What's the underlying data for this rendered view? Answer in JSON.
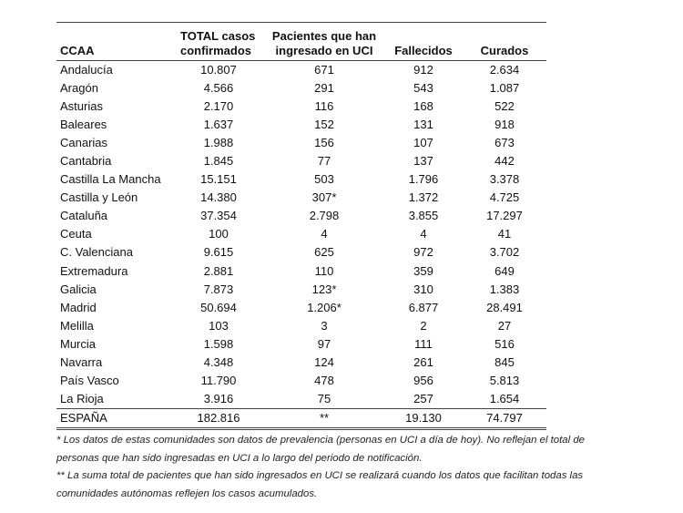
{
  "table": {
    "headers": {
      "ccaa": "CCAA",
      "total_line1": "TOTAL casos",
      "total_line2": "confirmados",
      "uci_line1": "Pacientes que han",
      "uci_line2": "ingresado en UCI",
      "fallecidos": "Fallecidos",
      "curados": "Curados"
    },
    "rows": [
      {
        "ccaa": "Andalucía",
        "total": "10.807",
        "uci": "671",
        "fallecidos": "912",
        "curados": "2.634"
      },
      {
        "ccaa": "Aragón",
        "total": "4.566",
        "uci": "291",
        "fallecidos": "543",
        "curados": "1.087"
      },
      {
        "ccaa": "Asturias",
        "total": "2.170",
        "uci": "116",
        "fallecidos": "168",
        "curados": "522"
      },
      {
        "ccaa": "Baleares",
        "total": "1.637",
        "uci": "152",
        "fallecidos": "131",
        "curados": "918"
      },
      {
        "ccaa": "Canarias",
        "total": "1.988",
        "uci": "156",
        "fallecidos": "107",
        "curados": "673"
      },
      {
        "ccaa": "Cantabria",
        "total": "1.845",
        "uci": "77",
        "fallecidos": "137",
        "curados": "442"
      },
      {
        "ccaa": "Castilla La Mancha",
        "total": "15.151",
        "uci": "503",
        "fallecidos": "1.796",
        "curados": "3.378"
      },
      {
        "ccaa": "Castilla y León",
        "total": "14.380",
        "uci": "307*",
        "fallecidos": "1.372",
        "curados": "4.725"
      },
      {
        "ccaa": "Cataluña",
        "total": "37.354",
        "uci": "2.798",
        "fallecidos": "3.855",
        "curados": "17.297"
      },
      {
        "ccaa": "Ceuta",
        "total": "100",
        "uci": "4",
        "fallecidos": "4",
        "curados": "41"
      },
      {
        "ccaa": "C. Valenciana",
        "total": "9.615",
        "uci": "625",
        "fallecidos": "972",
        "curados": "3.702"
      },
      {
        "ccaa": "Extremadura",
        "total": "2.881",
        "uci": "110",
        "fallecidos": "359",
        "curados": "649"
      },
      {
        "ccaa": "Galicia",
        "total": "7.873",
        "uci": "123*",
        "fallecidos": "310",
        "curados": "1.383"
      },
      {
        "ccaa": "Madrid",
        "total": "50.694",
        "uci": "1.206*",
        "fallecidos": "6.877",
        "curados": "28.491"
      },
      {
        "ccaa": "Melilla",
        "total": "103",
        "uci": "3",
        "fallecidos": "2",
        "curados": "27"
      },
      {
        "ccaa": "Murcia",
        "total": "1.598",
        "uci": "97",
        "fallecidos": "111",
        "curados": "516"
      },
      {
        "ccaa": "Navarra",
        "total": "4.348",
        "uci": "124",
        "fallecidos": "261",
        "curados": "845"
      },
      {
        "ccaa": "País Vasco",
        "total": "11.790",
        "uci": "478",
        "fallecidos": "956",
        "curados": "5.813"
      },
      {
        "ccaa": "La Rioja",
        "total": "3.916",
        "uci": "75",
        "fallecidos": "257",
        "curados": "1.654"
      }
    ],
    "total": {
      "ccaa": "ESPAÑA",
      "total": "182.816",
      "uci": "**",
      "fallecidos": "19.130",
      "curados": "74.797"
    }
  },
  "notes": {
    "note1": "* Los datos de estas comunidades son datos de prevalencia (personas en UCI a día de hoy). No reflejan el total de personas que han sido ingresadas en UCI a lo largo del periodo de notificación.",
    "note2": "** La suma total de pacientes que han sido ingresados en UCI se realizará cuando los datos que facilitan todas las comunidades autónomas reflejen los casos acumulados."
  }
}
